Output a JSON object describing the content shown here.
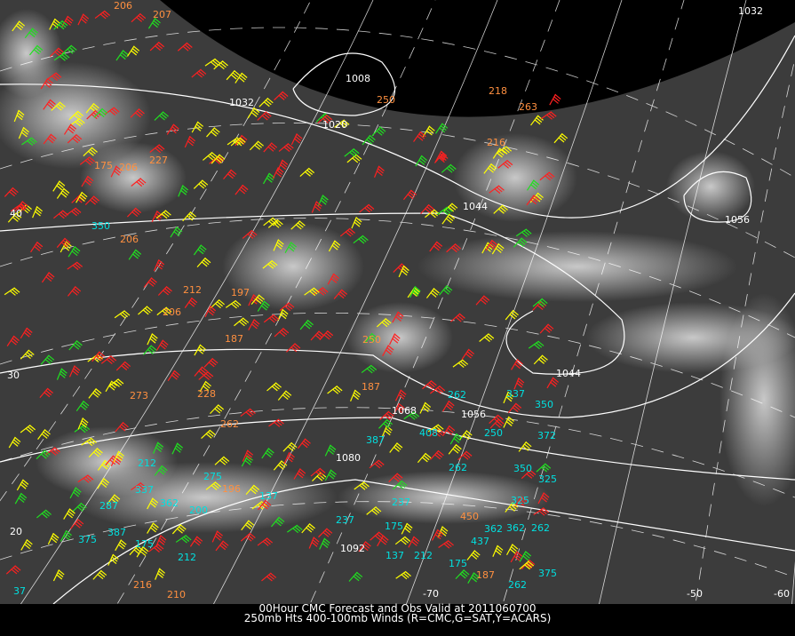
{
  "caption": {
    "line1": "00Hour CMC Forecast and Obs Valid at 2011060700",
    "line2": "250mb Hts 400-100mb Winds (R=CMC,G=SAT,Y=ACARS)"
  },
  "legend_colors": {
    "cmc": "#ff2020",
    "sat": "#20e020",
    "acars": "#ffff00",
    "obs_label": "#00e0e0",
    "forecast_label": "#ff9040",
    "contour": "#ffffff",
    "coastline": "#ffc8c8"
  },
  "contour_labels": [
    "1032",
    "1008",
    "1020",
    "1032",
    "1044",
    "1056",
    "1044",
    "1056",
    "1068",
    "1080",
    "1092",
    "-60",
    "-50",
    "-70",
    "20",
    "40",
    "30"
  ],
  "obs_labels": [
    {
      "v": "206",
      "c": "forecast"
    },
    {
      "v": "207",
      "c": "forecast"
    },
    {
      "v": "250",
      "c": "forecast"
    },
    {
      "v": "218",
      "c": "forecast"
    },
    {
      "v": "263",
      "c": "forecast"
    },
    {
      "v": "216",
      "c": "forecast"
    },
    {
      "v": "227",
      "c": "forecast"
    },
    {
      "v": "206",
      "c": "forecast"
    },
    {
      "v": "175",
      "c": "forecast"
    },
    {
      "v": "206",
      "c": "forecast"
    },
    {
      "v": "350",
      "c": "obs"
    },
    {
      "v": "206",
      "c": "forecast"
    },
    {
      "v": "212",
      "c": "forecast"
    },
    {
      "v": "197",
      "c": "forecast"
    },
    {
      "v": "187",
      "c": "forecast"
    },
    {
      "v": "250",
      "c": "forecast"
    },
    {
      "v": "187",
      "c": "forecast"
    },
    {
      "v": "273",
      "c": "forecast"
    },
    {
      "v": "228",
      "c": "forecast"
    },
    {
      "v": "262",
      "c": "forecast"
    },
    {
      "v": "387",
      "c": "obs"
    },
    {
      "v": "408",
      "c": "obs"
    },
    {
      "v": "262",
      "c": "obs"
    },
    {
      "v": "337",
      "c": "obs"
    },
    {
      "v": "350",
      "c": "obs"
    },
    {
      "v": "212",
      "c": "obs"
    },
    {
      "v": "337",
      "c": "obs"
    },
    {
      "v": "362",
      "c": "obs"
    },
    {
      "v": "200",
      "c": "obs"
    },
    {
      "v": "275",
      "c": "obs"
    },
    {
      "v": "196",
      "c": "forecast"
    },
    {
      "v": "137",
      "c": "obs"
    },
    {
      "v": "287",
      "c": "obs"
    },
    {
      "v": "387",
      "c": "obs"
    },
    {
      "v": "375",
      "c": "obs"
    },
    {
      "v": "175",
      "c": "obs"
    },
    {
      "v": "212",
      "c": "obs"
    },
    {
      "v": "237",
      "c": "obs"
    },
    {
      "v": "175",
      "c": "obs"
    },
    {
      "v": "137",
      "c": "obs"
    },
    {
      "v": "212",
      "c": "obs"
    },
    {
      "v": "175",
      "c": "obs"
    },
    {
      "v": "187",
      "c": "forecast"
    },
    {
      "v": "262",
      "c": "obs"
    },
    {
      "v": "375",
      "c": "obs"
    },
    {
      "v": "362",
      "c": "obs"
    },
    {
      "v": "262",
      "c": "obs"
    },
    {
      "v": "437",
      "c": "obs"
    },
    {
      "v": "450",
      "c": "forecast"
    },
    {
      "v": "325",
      "c": "obs"
    },
    {
      "v": "350",
      "c": "obs"
    },
    {
      "v": "250",
      "c": "obs"
    },
    {
      "v": "372",
      "c": "obs"
    },
    {
      "v": "237",
      "c": "obs"
    },
    {
      "v": "325",
      "c": "obs"
    },
    {
      "v": "262",
      "c": "obs"
    },
    {
      "v": "362",
      "c": "obs"
    },
    {
      "v": "37",
      "c": "obs"
    },
    {
      "v": "216",
      "c": "forecast"
    },
    {
      "v": "210",
      "c": "forecast"
    }
  ]
}
